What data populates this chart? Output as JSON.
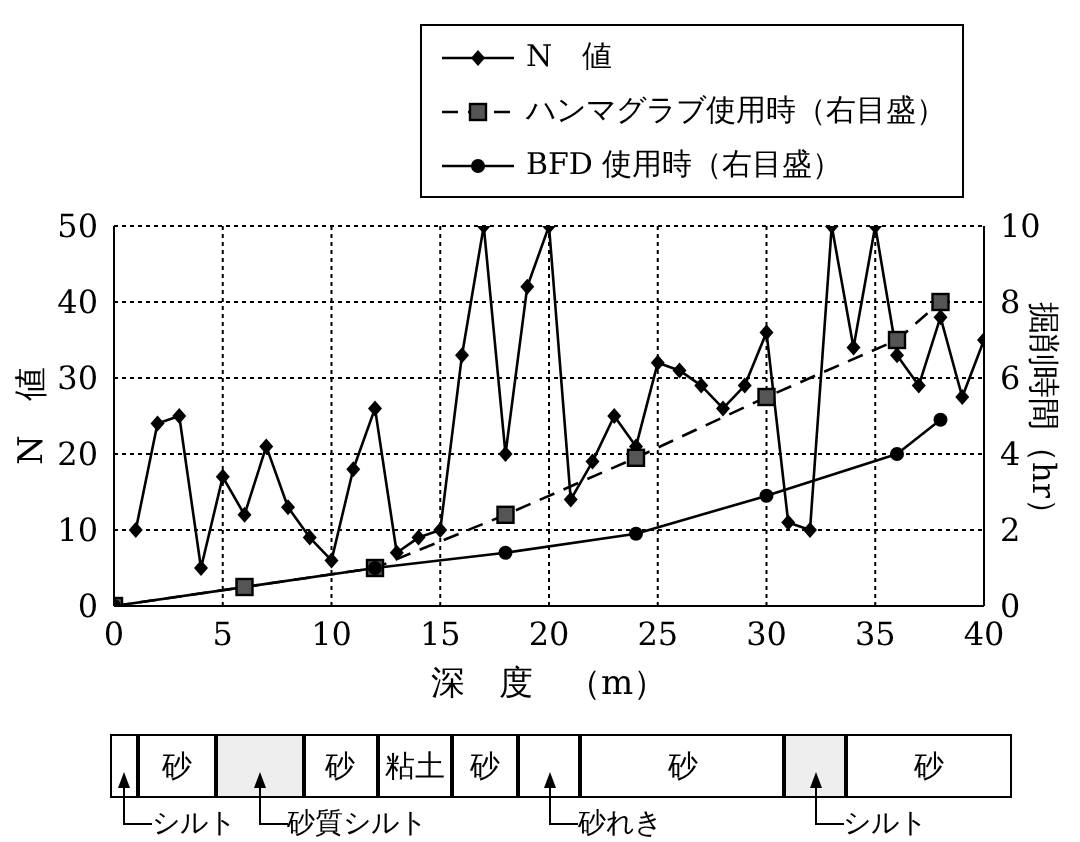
{
  "chart_data": {
    "type": "line",
    "xlabel": "深　度　（m）",
    "ylabel": "N　値",
    "y2label": "掘削時間（hr）",
    "xlim": [
      0,
      40
    ],
    "xticks": [
      0,
      5,
      10,
      15,
      20,
      25,
      30,
      35,
      40
    ],
    "ylim": [
      0,
      50
    ],
    "yticks": [
      0,
      10,
      20,
      30,
      40,
      50
    ],
    "y2lim": [
      0,
      10
    ],
    "y2ticks": [
      0,
      2,
      4,
      6,
      8,
      10
    ],
    "grid": true,
    "legend": "top right",
    "series": [
      {
        "name": "N　値",
        "color": "#000000",
        "marker": "diamond",
        "line_style": "solid",
        "x": [
          1,
          2,
          3,
          4,
          5,
          6,
          7,
          8,
          9,
          10,
          11,
          12,
          13,
          14,
          15,
          16,
          17,
          18,
          19,
          20,
          21,
          22,
          23,
          24,
          25,
          26,
          27,
          28,
          29,
          30,
          31,
          32,
          33,
          34,
          35,
          36,
          37,
          38,
          39,
          40
        ],
        "values": [
          10,
          24,
          25,
          5,
          17,
          12,
          21,
          13,
          9,
          6,
          18,
          26,
          7,
          9,
          10,
          33,
          50,
          20,
          42,
          50,
          14,
          19,
          25,
          21,
          32,
          31,
          29,
          26,
          29,
          36,
          11,
          10,
          50,
          34,
          50,
          33,
          29,
          38,
          27.5,
          35
        ]
      },
      {
        "name": "ハンマグラブ使用時（右目盛）",
        "color": "#000000",
        "marker": "square",
        "line_style": "dashed",
        "axis": "y2",
        "x": [
          0,
          6,
          12,
          18,
          24,
          30,
          36,
          38
        ],
        "values": [
          0,
          0.5,
          1.0,
          2.4,
          3.9,
          5.5,
          7.0,
          8.0
        ]
      },
      {
        "name": "BFD 使用時（右目盛）",
        "color": "#000000",
        "marker": "circle",
        "line_style": "solid",
        "axis": "y2",
        "x": [
          0,
          12,
          18,
          24,
          30,
          36,
          38
        ],
        "values": [
          0,
          1.0,
          1.4,
          1.9,
          2.9,
          4.0,
          4.9
        ]
      }
    ],
    "annotations": [
      "砂",
      "砂",
      "粘土",
      "砂",
      "砂",
      "砂",
      "シルト",
      "砂質シルト",
      "砂れき",
      "シルト"
    ]
  }
}
